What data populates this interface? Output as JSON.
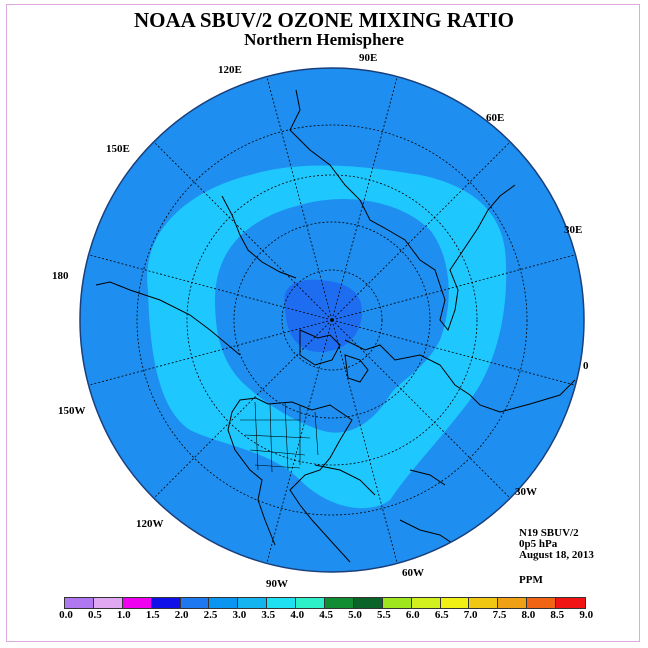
{
  "title": "NOAA SBUV/2 OZONE MIXING RATIO",
  "subtitle": "Northern Hemisphere",
  "longitudes": [
    "120E",
    "90E",
    "60E",
    "150E",
    "30E",
    "180",
    "0",
    "150W",
    "30W",
    "120W",
    "60W",
    "90W"
  ],
  "info": {
    "satellite": "N19 SBUV/2",
    "level": "0p5 hPa",
    "date": "August 18, 2013",
    "units": "PPM"
  },
  "colorbar": {
    "ticks": [
      "0.0",
      "0.5",
      "1.0",
      "1.5",
      "2.0",
      "2.5",
      "3.0",
      "3.5",
      "4.0",
      "4.5",
      "5.0",
      "5.5",
      "6.0",
      "6.5",
      "7.0",
      "7.5",
      "8.0",
      "8.5",
      "9.0"
    ],
    "colors": [
      "#b078f0",
      "#e0a8f0",
      "#f000f0",
      "#1010e8",
      "#1e78f0",
      "#0a96f0",
      "#14b4f0",
      "#1ee0f0",
      "#2ef0c8",
      "#108c32",
      "#0a6428",
      "#a0e61e",
      "#d2f01e",
      "#f0f014",
      "#f0c814",
      "#f0a014",
      "#f06414",
      "#f01414",
      "#8c5a3c"
    ]
  },
  "map_colors": {
    "outer": "#1e8ff0",
    "band": "#1ec8ff",
    "pole": "#1e6cf0"
  }
}
